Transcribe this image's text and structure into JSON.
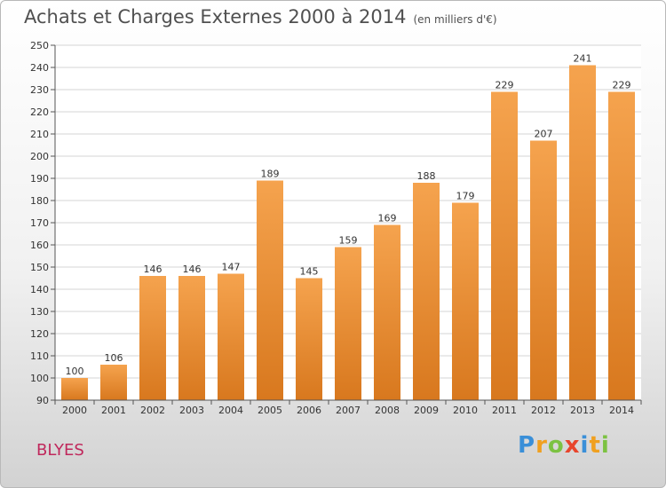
{
  "title": "Achats et Charges Externes 2000 à 2014",
  "subtitle": "(en milliers d'€)",
  "town": "BLYES",
  "logo": {
    "letters": [
      "P",
      "r",
      "o",
      "x",
      "i",
      "t",
      "i"
    ],
    "colors": [
      "#3a8fd8",
      "#f0a020",
      "#7cc242",
      "#e8452c",
      "#3a8fd8",
      "#f0a020",
      "#7cc242"
    ]
  },
  "chart_data": {
    "type": "bar",
    "categories": [
      "2000",
      "2001",
      "2002",
      "2003",
      "2004",
      "2005",
      "2006",
      "2007",
      "2008",
      "2009",
      "2010",
      "2011",
      "2012",
      "2013",
      "2014"
    ],
    "values": [
      100,
      106,
      146,
      146,
      147,
      189,
      145,
      159,
      169,
      188,
      179,
      229,
      207,
      241,
      229
    ],
    "title": "Achats et Charges Externes 2000 à 2014",
    "subtitle": "(en milliers d'€)",
    "ylim": [
      90,
      250
    ],
    "yticks": [
      90,
      100,
      110,
      120,
      130,
      140,
      150,
      160,
      170,
      180,
      190,
      200,
      210,
      220,
      230,
      240,
      250
    ],
    "grid": true,
    "bar_color_top": "#f5a34e",
    "bar_color_bottom": "#d8781e"
  }
}
